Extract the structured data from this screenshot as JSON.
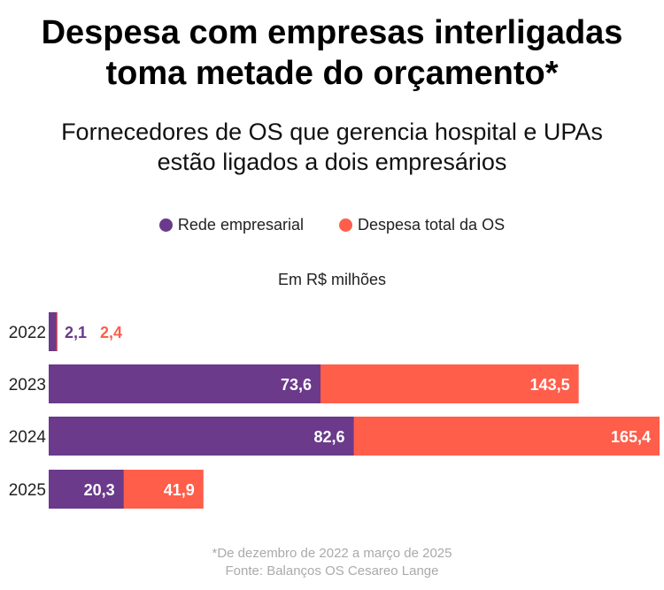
{
  "header": {
    "title_line1": "Despesa com empresas interligadas",
    "title_line2": "toma metade do orçamento*",
    "subtitle_line1": "Fornecedores de OS que gerencia hospital e UPAs",
    "subtitle_line2": "estão ligados a dois empresários"
  },
  "footer": {
    "note": "*De dezembro de 2022 a março de 2025",
    "source": "Fonte: Balanços OS Cesareo Lange"
  },
  "chart_data": {
    "type": "bar",
    "orientation": "horizontal",
    "layout": "overlapped",
    "unit_label": "Em R$ milhões",
    "categories": [
      "2022",
      "2023",
      "2024",
      "2025"
    ],
    "series": [
      {
        "name": "Rede empresarial",
        "color": "#6b3a8b",
        "values": [
          2.1,
          73.6,
          82.6,
          20.3
        ],
        "labels": [
          "2,1",
          "73,6",
          "82,6",
          "20,3"
        ]
      },
      {
        "name": "Despesa total da OS",
        "color": "#ff5e4b",
        "values": [
          2.4,
          143.5,
          165.4,
          41.9
        ],
        "labels": [
          "2,4",
          "143,5",
          "165,4",
          "41,9"
        ]
      }
    ],
    "legend": "top-center",
    "grid": false
  }
}
